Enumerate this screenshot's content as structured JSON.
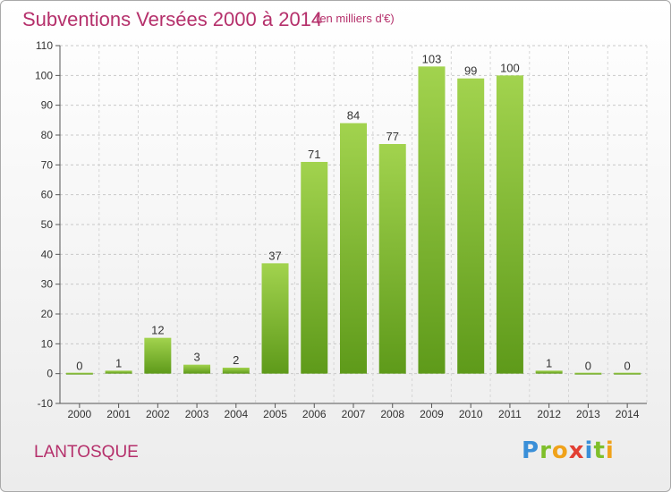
{
  "header": {
    "title": "Subventions Versées 2000 à 2014",
    "unit": "(en milliers d'€)"
  },
  "footer": {
    "commune": "LANTOSQUE",
    "logo_text": "Proxiti",
    "logo_icon": "proxiti-logo"
  },
  "colors": {
    "title": "#b5306b",
    "bar_light": "#9fd14b",
    "bar_dark": "#5e9a1a"
  },
  "chart_data": {
    "type": "bar",
    "categories": [
      "2000",
      "2001",
      "2002",
      "2003",
      "2004",
      "2005",
      "2006",
      "2007",
      "2008",
      "2009",
      "2010",
      "2011",
      "2012",
      "2013",
      "2014"
    ],
    "values": [
      0,
      1,
      12,
      3,
      2,
      37,
      71,
      84,
      77,
      103,
      99,
      100,
      1,
      0,
      0
    ],
    "title": "Subventions Versées 2000 à 2014",
    "xlabel": "",
    "ylabel": "",
    "ylim": [
      -10,
      110
    ],
    "yticks": [
      -10,
      0,
      10,
      20,
      30,
      40,
      50,
      60,
      70,
      80,
      90,
      100,
      110
    ],
    "grid": "horizontal dashed",
    "legend": "none"
  }
}
